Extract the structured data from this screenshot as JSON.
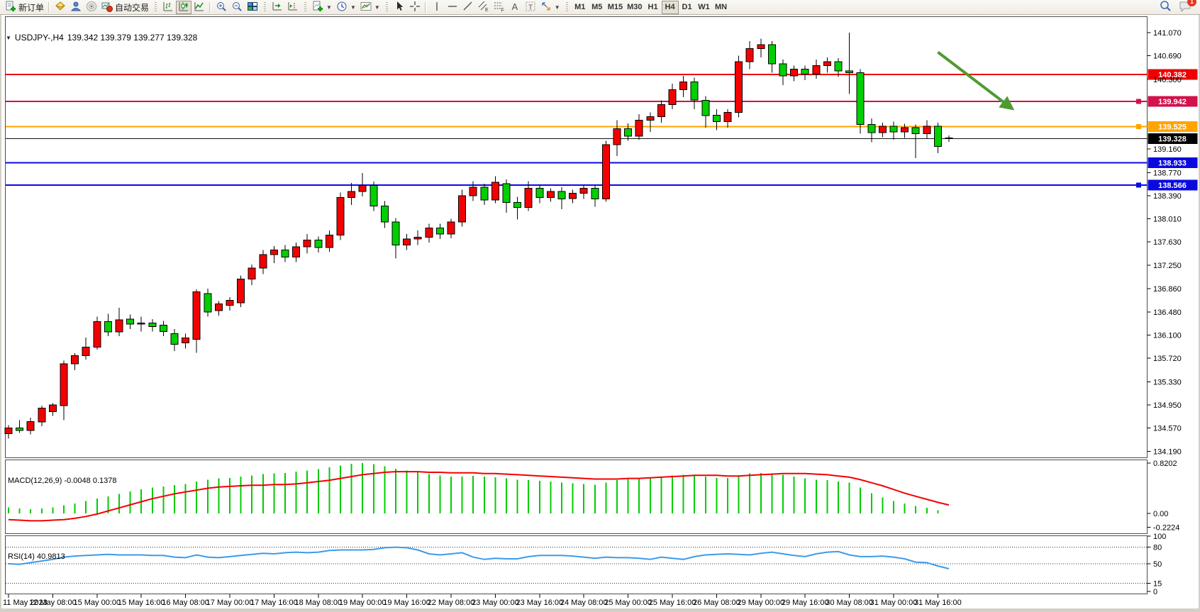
{
  "toolbar": {
    "new_order": "新订单",
    "autotrading": "自动交易",
    "timeframes": [
      "M1",
      "M5",
      "M15",
      "M30",
      "H1",
      "H4",
      "D1",
      "W1",
      "MN"
    ],
    "active_timeframe": "H4",
    "chat_badge": "1"
  },
  "chart": {
    "symbol_period": "USDJPY-,H4",
    "ohlc_text": "139.342 139.379 139.277 139.328",
    "macd_label": "MACD(12,26,9) -0.0048 0.1378",
    "rsi_label": "RSI(14) 40.9813"
  },
  "chart_data": {
    "type": "candlestick",
    "symbol": "USDJPY-",
    "timeframe": "H4",
    "title": "USDJPY-,H4",
    "current": {
      "open": 139.342,
      "high": 139.379,
      "low": 139.277,
      "close": 139.328,
      "bid": 139.328
    },
    "colors": {
      "bull": "#f40000",
      "bear": "#00cf00",
      "wick": "#000000",
      "macd_hist": "#00cc00",
      "macd_signal": "#f40000",
      "rsi_line": "#3d9be9",
      "arrow": "#4f9b2f"
    },
    "price_axis": {
      "ticks": [
        "141.070",
        "140.690",
        "140.300",
        "139.160",
        "138.770",
        "138.390",
        "138.010",
        "137.630",
        "137.250",
        "136.860",
        "136.480",
        "136.100",
        "135.720",
        "135.330",
        "134.950",
        "134.570",
        "134.190"
      ]
    },
    "hlines": [
      {
        "price": 140.382,
        "color": "#ee0000",
        "width": 2,
        "label": "140.382",
        "handle": false
      },
      {
        "price": 139.942,
        "color": "#d2114d",
        "width": 2,
        "label": "139.942",
        "handle": true
      },
      {
        "price": 139.525,
        "color": "#ffa400",
        "width": 2,
        "label": "139.525",
        "handle": true
      },
      {
        "price": 139.328,
        "color": "#111111",
        "width": 1,
        "label": "139.328",
        "handle": false
      },
      {
        "price": 138.933,
        "color": "#0a0adf",
        "width": 2,
        "label": "138.933",
        "handle": false
      },
      {
        "price": 138.566,
        "color": "#0a0adf",
        "width": 2,
        "label": "138.566",
        "handle": true
      }
    ],
    "candles": [
      [
        134.48,
        134.62,
        134.4,
        134.57
      ],
      [
        134.57,
        134.7,
        134.49,
        134.53
      ],
      [
        134.53,
        134.74,
        134.47,
        134.68
      ],
      [
        134.67,
        134.94,
        134.6,
        134.9
      ],
      [
        134.84,
        134.98,
        134.77,
        134.95
      ],
      [
        134.94,
        135.68,
        134.7,
        135.63
      ],
      [
        135.63,
        135.8,
        135.52,
        135.76
      ],
      [
        135.76,
        136.06,
        135.7,
        135.9
      ],
      [
        135.9,
        136.4,
        135.86,
        136.32
      ],
      [
        136.32,
        136.45,
        136.08,
        136.15
      ],
      [
        136.15,
        136.55,
        136.08,
        136.35
      ],
      [
        136.36,
        136.44,
        136.2,
        136.28
      ],
      [
        136.28,
        136.4,
        136.16,
        136.3
      ],
      [
        136.3,
        136.36,
        136.16,
        136.24
      ],
      [
        136.26,
        136.33,
        136.08,
        136.16
      ],
      [
        136.12,
        136.2,
        135.84,
        135.95
      ],
      [
        135.97,
        136.12,
        135.88,
        136.05
      ],
      [
        136.03,
        136.85,
        135.81,
        136.81
      ],
      [
        136.78,
        136.86,
        136.4,
        136.48
      ],
      [
        136.5,
        136.66,
        136.42,
        136.61
      ],
      [
        136.59,
        136.72,
        136.5,
        136.67
      ],
      [
        136.63,
        137.08,
        136.56,
        137.02
      ],
      [
        137.02,
        137.26,
        136.92,
        137.2
      ],
      [
        137.2,
        137.5,
        137.1,
        137.42
      ],
      [
        137.42,
        137.56,
        137.28,
        137.5
      ],
      [
        137.5,
        137.58,
        137.3,
        137.38
      ],
      [
        137.38,
        137.62,
        137.3,
        137.55
      ],
      [
        137.55,
        137.76,
        137.44,
        137.66
      ],
      [
        137.66,
        137.72,
        137.46,
        137.54
      ],
      [
        137.54,
        137.82,
        137.47,
        137.74
      ],
      [
        137.74,
        138.44,
        137.66,
        138.36
      ],
      [
        138.36,
        138.6,
        138.24,
        138.46
      ],
      [
        138.46,
        138.76,
        138.38,
        138.56
      ],
      [
        138.56,
        138.62,
        138.14,
        138.22
      ],
      [
        138.22,
        138.3,
        137.86,
        137.96
      ],
      [
        137.96,
        138.02,
        137.36,
        137.58
      ],
      [
        137.58,
        137.76,
        137.5,
        137.68
      ],
      [
        137.68,
        137.82,
        137.58,
        137.71
      ],
      [
        137.71,
        137.93,
        137.62,
        137.86
      ],
      [
        137.86,
        137.93,
        137.68,
        137.76
      ],
      [
        137.76,
        138.01,
        137.69,
        137.96
      ],
      [
        137.96,
        138.49,
        137.88,
        138.39
      ],
      [
        138.39,
        138.63,
        138.3,
        138.53
      ],
      [
        138.53,
        138.59,
        138.24,
        138.32
      ],
      [
        138.32,
        138.71,
        138.27,
        138.61
      ],
      [
        138.59,
        138.66,
        138.11,
        138.28
      ],
      [
        138.28,
        138.37,
        138.0,
        138.2
      ],
      [
        138.2,
        138.63,
        138.14,
        138.51
      ],
      [
        138.51,
        138.57,
        138.27,
        138.36
      ],
      [
        138.36,
        138.51,
        138.29,
        138.46
      ],
      [
        138.46,
        138.53,
        138.17,
        138.34
      ],
      [
        138.34,
        138.49,
        138.27,
        138.43
      ],
      [
        138.43,
        138.56,
        138.34,
        138.51
      ],
      [
        138.51,
        138.56,
        138.21,
        138.34
      ],
      [
        138.34,
        139.29,
        138.29,
        139.23
      ],
      [
        139.23,
        139.63,
        139.04,
        139.49
      ],
      [
        139.49,
        139.58,
        139.29,
        139.37
      ],
      [
        139.37,
        139.73,
        139.31,
        139.63
      ],
      [
        139.63,
        139.76,
        139.44,
        139.69
      ],
      [
        139.69,
        139.96,
        139.59,
        139.89
      ],
      [
        139.89,
        140.23,
        139.81,
        140.13
      ],
      [
        140.13,
        140.36,
        140.01,
        140.26
      ],
      [
        140.26,
        140.33,
        139.81,
        139.96
      ],
      [
        139.96,
        140.03,
        139.51,
        139.71
      ],
      [
        139.71,
        139.81,
        139.47,
        139.61
      ],
      [
        139.61,
        139.81,
        139.51,
        139.76
      ],
      [
        139.76,
        140.69,
        139.68,
        140.59
      ],
      [
        140.59,
        140.93,
        140.47,
        140.81
      ],
      [
        140.81,
        140.97,
        140.66,
        140.87
      ],
      [
        140.87,
        140.93,
        140.41,
        140.56
      ],
      [
        140.56,
        140.63,
        140.21,
        140.36
      ],
      [
        140.36,
        140.53,
        140.27,
        140.47
      ],
      [
        140.47,
        140.53,
        140.29,
        140.39
      ],
      [
        140.39,
        140.63,
        140.31,
        140.53
      ],
      [
        140.53,
        140.66,
        140.41,
        140.59
      ],
      [
        140.59,
        140.65,
        140.34,
        140.44
      ],
      [
        140.44,
        141.07,
        140.06,
        140.41
      ],
      [
        140.41,
        140.47,
        139.41,
        139.56
      ],
      [
        139.56,
        139.66,
        139.27,
        139.43
      ],
      [
        139.43,
        139.59,
        139.35,
        139.53
      ],
      [
        139.53,
        139.61,
        139.31,
        139.44
      ],
      [
        139.44,
        139.57,
        139.34,
        139.51
      ],
      [
        139.51,
        139.56,
        139.01,
        139.41
      ],
      [
        139.41,
        139.63,
        139.33,
        139.53
      ],
      [
        139.53,
        139.59,
        139.09,
        139.2
      ],
      [
        139.342,
        139.379,
        139.277,
        139.328
      ]
    ],
    "time_axis": {
      "labels": [
        {
          "i": 0,
          "t": "11 May 2023"
        },
        {
          "i": 4,
          "t": "12 May 08:00"
        },
        {
          "i": 8,
          "t": "15 May 00:00"
        },
        {
          "i": 12,
          "t": "15 May 16:00"
        },
        {
          "i": 16,
          "t": "16 May 08:00"
        },
        {
          "i": 20,
          "t": "17 May 00:00"
        },
        {
          "i": 24,
          "t": "17 May 16:00"
        },
        {
          "i": 28,
          "t": "18 May 08:00"
        },
        {
          "i": 32,
          "t": "19 May 00:00"
        },
        {
          "i": 36,
          "t": "19 May 16:00"
        },
        {
          "i": 40,
          "t": "22 May 08:00"
        },
        {
          "i": 44,
          "t": "23 May 00:00"
        },
        {
          "i": 48,
          "t": "23 May 16:00"
        },
        {
          "i": 52,
          "t": "24 May 08:00"
        },
        {
          "i": 56,
          "t": "25 May 00:00"
        },
        {
          "i": 60,
          "t": "25 May 16:00"
        },
        {
          "i": 64,
          "t": "26 May 08:00"
        },
        {
          "i": 68,
          "t": "29 May 00:00"
        },
        {
          "i": 72,
          "t": "29 May 16:00"
        },
        {
          "i": 76,
          "t": "30 May 08:00"
        },
        {
          "i": 80,
          "t": "31 May 00:00"
        },
        {
          "i": 84,
          "t": "31 May 16:00"
        }
      ]
    },
    "macd": {
      "name": "MACD(12,26,9)",
      "current_value": -0.0048,
      "current_signal": 0.1378,
      "axis_ticks": [
        {
          "v": 0.8202,
          "t": "0.8202"
        },
        {
          "v": 0,
          "t": "0.00"
        },
        {
          "v": -0.2224,
          "t": "-0.2224"
        }
      ],
      "values": [
        0.1,
        0.08,
        0.07,
        0.08,
        0.1,
        0.13,
        0.16,
        0.2,
        0.24,
        0.28,
        0.32,
        0.36,
        0.39,
        0.42,
        0.44,
        0.46,
        0.48,
        0.52,
        0.55,
        0.57,
        0.58,
        0.6,
        0.62,
        0.64,
        0.65,
        0.66,
        0.68,
        0.7,
        0.72,
        0.75,
        0.78,
        0.81,
        0.82,
        0.8,
        0.77,
        0.73,
        0.7,
        0.67,
        0.64,
        0.62,
        0.6,
        0.6,
        0.61,
        0.6,
        0.59,
        0.57,
        0.55,
        0.54,
        0.53,
        0.52,
        0.5,
        0.49,
        0.48,
        0.47,
        0.5,
        0.54,
        0.56,
        0.58,
        0.59,
        0.6,
        0.62,
        0.63,
        0.62,
        0.6,
        0.58,
        0.58,
        0.62,
        0.65,
        0.66,
        0.65,
        0.63,
        0.6,
        0.57,
        0.55,
        0.54,
        0.52,
        0.5,
        0.42,
        0.33,
        0.26,
        0.2,
        0.16,
        0.12,
        0.09,
        0.05,
        -0.005
      ],
      "signal": [
        -0.1,
        -0.11,
        -0.12,
        -0.12,
        -0.11,
        -0.1,
        -0.08,
        -0.05,
        -0.01,
        0.04,
        0.09,
        0.14,
        0.19,
        0.24,
        0.28,
        0.32,
        0.35,
        0.38,
        0.41,
        0.43,
        0.44,
        0.45,
        0.46,
        0.46,
        0.47,
        0.47,
        0.48,
        0.5,
        0.52,
        0.54,
        0.57,
        0.6,
        0.63,
        0.65,
        0.67,
        0.68,
        0.68,
        0.68,
        0.67,
        0.67,
        0.66,
        0.66,
        0.66,
        0.65,
        0.65,
        0.64,
        0.63,
        0.62,
        0.61,
        0.6,
        0.59,
        0.58,
        0.57,
        0.56,
        0.56,
        0.56,
        0.57,
        0.57,
        0.58,
        0.59,
        0.6,
        0.61,
        0.62,
        0.62,
        0.62,
        0.61,
        0.61,
        0.62,
        0.63,
        0.64,
        0.65,
        0.65,
        0.65,
        0.64,
        0.63,
        0.61,
        0.59,
        0.55,
        0.5,
        0.45,
        0.39,
        0.33,
        0.28,
        0.23,
        0.18,
        0.1378
      ]
    },
    "rsi": {
      "name": "RSI(14)",
      "current_value": 40.9813,
      "levels": [
        80,
        50,
        15
      ],
      "axis_ticks": [
        {
          "v": 100,
          "t": "100"
        },
        {
          "v": 80,
          "t": "80"
        },
        {
          "v": 50,
          "t": "50"
        },
        {
          "v": 15,
          "t": "15"
        },
        {
          "v": 0,
          "t": "0"
        }
      ],
      "values": [
        50,
        49,
        52,
        55,
        58,
        62,
        64,
        65,
        66,
        67,
        66,
        66,
        66,
        65,
        65,
        62,
        61,
        66,
        62,
        61,
        63,
        65,
        67,
        69,
        68,
        70,
        71,
        70,
        71,
        74,
        75,
        75,
        75,
        76,
        79,
        80,
        79,
        75,
        68,
        66,
        68,
        70,
        62,
        58,
        60,
        59,
        59,
        63,
        65,
        65,
        65,
        64,
        62,
        60,
        62,
        61,
        61,
        60,
        58,
        62,
        60,
        58,
        63,
        66,
        67,
        68,
        67,
        66,
        69,
        71,
        68,
        65,
        63,
        68,
        71,
        72,
        66,
        63,
        63,
        64,
        62,
        59,
        53,
        52,
        46,
        41
      ]
    },
    "annotation_arrow": {
      "from_i": 84,
      "from_price": 140.75,
      "to_i": 90.5,
      "to_price": 139.85,
      "color": "#4f9b2f"
    }
  }
}
